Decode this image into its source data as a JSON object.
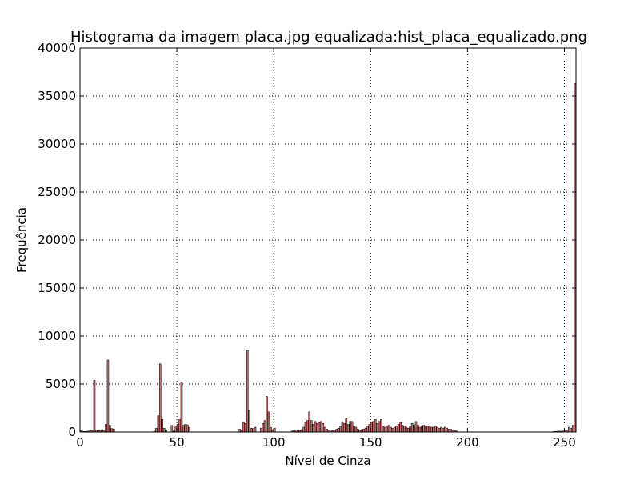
{
  "chart_data": {
    "type": "bar",
    "title": "Histograma da imagem placa.jpg equalizada:hist_placa_equalizado.png",
    "xlabel": "Nível de Cinza",
    "ylabel": "Frequência",
    "xlim": [
      0,
      256
    ],
    "ylim": [
      0,
      40000
    ],
    "xticks": [
      "0",
      "50",
      "100",
      "150",
      "200",
      "250"
    ],
    "yticks": [
      "0",
      "5000",
      "10000",
      "15000",
      "20000",
      "25000",
      "30000",
      "35000",
      "40000"
    ],
    "grid": true,
    "bar_color": "#c76b6b",
    "bins": [
      [
        0,
        150
      ],
      [
        1,
        80
      ],
      [
        2,
        60
      ],
      [
        3,
        70
      ],
      [
        4,
        100
      ],
      [
        5,
        150
      ],
      [
        6,
        120
      ],
      [
        7,
        5400
      ],
      [
        8,
        200
      ],
      [
        9,
        150
      ],
      [
        10,
        120
      ],
      [
        11,
        250
      ],
      [
        12,
        180
      ],
      [
        13,
        800
      ],
      [
        14,
        7500
      ],
      [
        15,
        700
      ],
      [
        16,
        350
      ],
      [
        17,
        320
      ],
      [
        38,
        100
      ],
      [
        39,
        400
      ],
      [
        40,
        1700
      ],
      [
        41,
        7100
      ],
      [
        42,
        1300
      ],
      [
        43,
        400
      ],
      [
        44,
        200
      ],
      [
        47,
        700
      ],
      [
        48,
        100
      ],
      [
        49,
        600
      ],
      [
        50,
        800
      ],
      [
        51,
        1300
      ],
      [
        52,
        5200
      ],
      [
        53,
        700
      ],
      [
        54,
        800
      ],
      [
        55,
        750
      ],
      [
        56,
        500
      ],
      [
        82,
        300
      ],
      [
        83,
        200
      ],
      [
        84,
        1000
      ],
      [
        85,
        900
      ],
      [
        86,
        8500
      ],
      [
        87,
        2300
      ],
      [
        88,
        400
      ],
      [
        89,
        350
      ],
      [
        90,
        500
      ],
      [
        93,
        400
      ],
      [
        94,
        900
      ],
      [
        95,
        1200
      ],
      [
        96,
        3700
      ],
      [
        97,
        2100
      ],
      [
        98,
        500
      ],
      [
        99,
        250
      ],
      [
        100,
        400
      ],
      [
        109,
        100
      ],
      [
        110,
        150
      ],
      [
        111,
        100
      ],
      [
        112,
        200
      ],
      [
        113,
        150
      ],
      [
        114,
        250
      ],
      [
        115,
        500
      ],
      [
        116,
        1000
      ],
      [
        117,
        1200
      ],
      [
        118,
        2100
      ],
      [
        119,
        1200
      ],
      [
        120,
        800
      ],
      [
        121,
        1100
      ],
      [
        122,
        900
      ],
      [
        123,
        1000
      ],
      [
        124,
        1100
      ],
      [
        125,
        900
      ],
      [
        126,
        500
      ],
      [
        127,
        300
      ],
      [
        128,
        200
      ],
      [
        129,
        100
      ],
      [
        130,
        150
      ],
      [
        131,
        200
      ],
      [
        132,
        300
      ],
      [
        133,
        400
      ],
      [
        134,
        600
      ],
      [
        135,
        1000
      ],
      [
        136,
        900
      ],
      [
        137,
        1400
      ],
      [
        138,
        800
      ],
      [
        139,
        1100
      ],
      [
        140,
        1100
      ],
      [
        141,
        600
      ],
      [
        142,
        500
      ],
      [
        143,
        300
      ],
      [
        144,
        200
      ],
      [
        145,
        250
      ],
      [
        146,
        300
      ],
      [
        147,
        400
      ],
      [
        148,
        600
      ],
      [
        149,
        800
      ],
      [
        150,
        1000
      ],
      [
        151,
        1100
      ],
      [
        152,
        1300
      ],
      [
        153,
        900
      ],
      [
        154,
        1100
      ],
      [
        155,
        1300
      ],
      [
        156,
        600
      ],
      [
        157,
        500
      ],
      [
        158,
        600
      ],
      [
        159,
        700
      ],
      [
        160,
        500
      ],
      [
        161,
        400
      ],
      [
        162,
        500
      ],
      [
        163,
        600
      ],
      [
        164,
        800
      ],
      [
        165,
        1000
      ],
      [
        166,
        700
      ],
      [
        167,
        600
      ],
      [
        168,
        500
      ],
      [
        169,
        400
      ],
      [
        170,
        600
      ],
      [
        171,
        900
      ],
      [
        172,
        700
      ],
      [
        173,
        1100
      ],
      [
        174,
        700
      ],
      [
        175,
        500
      ],
      [
        176,
        600
      ],
      [
        177,
        700
      ],
      [
        178,
        600
      ],
      [
        179,
        600
      ],
      [
        180,
        600
      ],
      [
        181,
        500
      ],
      [
        182,
        500
      ],
      [
        183,
        600
      ],
      [
        184,
        500
      ],
      [
        185,
        400
      ],
      [
        186,
        500
      ],
      [
        187,
        400
      ],
      [
        188,
        500
      ],
      [
        189,
        400
      ],
      [
        190,
        300
      ],
      [
        191,
        300
      ],
      [
        192,
        200
      ],
      [
        193,
        150
      ],
      [
        194,
        100
      ],
      [
        244,
        50
      ],
      [
        245,
        60
      ],
      [
        246,
        80
      ],
      [
        247,
        100
      ],
      [
        248,
        80
      ],
      [
        249,
        120
      ],
      [
        250,
        150
      ],
      [
        251,
        200
      ],
      [
        252,
        500
      ],
      [
        253,
        400
      ],
      [
        254,
        700
      ],
      [
        255,
        36300
      ]
    ]
  }
}
